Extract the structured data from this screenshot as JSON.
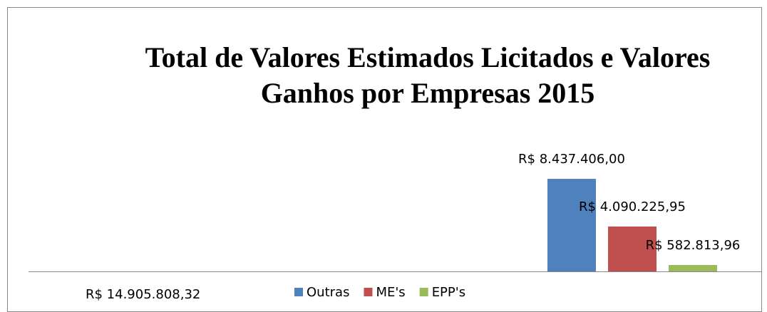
{
  "chart_data": {
    "type": "bar",
    "title": [
      "Total de Valores Estimados Licitados e Valores",
      "Ganhos por Empresas 2015"
    ],
    "annotation": "R$ 14.905.808,32",
    "series": [
      {
        "name": "Outras",
        "color": "#4f81bd",
        "values": [
          8437406
        ],
        "value_labels": [
          "R$ 8.437.406,00"
        ]
      },
      {
        "name": "ME's",
        "color": "#c0504d",
        "values": [
          4090225.95
        ],
        "value_labels": [
          "R$ 4.090.225,95"
        ]
      },
      {
        "name": "EPP's",
        "color": "#9bbb59",
        "values": [
          582813.96
        ],
        "value_labels": [
          "R$ 582.813,96"
        ]
      }
    ],
    "ylim": [
      0,
      15000000
    ],
    "legend": "bottom"
  }
}
